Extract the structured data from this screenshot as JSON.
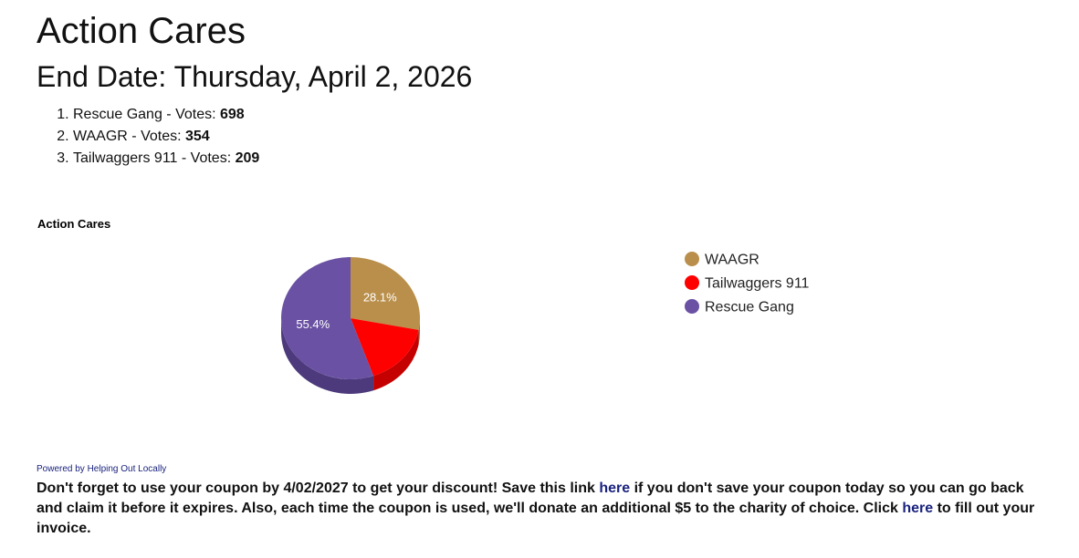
{
  "page": {
    "title": "Action Cares",
    "end_date": "End Date: Thursday, April 2, 2026"
  },
  "results": [
    {
      "rank": "1.",
      "name": "Rescue Gang",
      "votes_label": " - Votes: ",
      "votes": "698"
    },
    {
      "rank": "2.",
      "name": "WAAGR",
      "votes_label": " - Votes: ",
      "votes": "354"
    },
    {
      "rank": "3.",
      "name": "Tailwaggers 911",
      "votes_label": " - Votes: ",
      "votes": "209"
    }
  ],
  "chart_data": {
    "type": "pie",
    "title": "Action Cares",
    "three_d": true,
    "legend_position": "right",
    "slices": [
      {
        "name": "WAAGR",
        "value": 354,
        "label": "28.1%",
        "color": "#b98f4b",
        "side_color": "#8f6d36"
      },
      {
        "name": "Tailwaggers 911",
        "value": 209,
        "label": "",
        "color": "#ff0000",
        "side_color": "#c50000"
      },
      {
        "name": "Rescue Gang",
        "value": 698,
        "label": "55.4%",
        "color": "#6a51a3",
        "side_color": "#4c3a7c"
      }
    ]
  },
  "footer": {
    "powered_by": "Powered by Helping Out Locally",
    "text_1": "Don't forget to use your coupon by 4/02/2027 to get your discount! Save this link ",
    "link_1": "here",
    "text_2": " if you don't save your coupon today so you can go back and claim it before it expires. Also, each time the coupon is used, we'll donate an additional $5 to the charity of choice. Click ",
    "link_2": "here",
    "text_3": " to fill out your invoice."
  },
  "colors": {
    "link": "#1a237e",
    "text": "#111111"
  }
}
